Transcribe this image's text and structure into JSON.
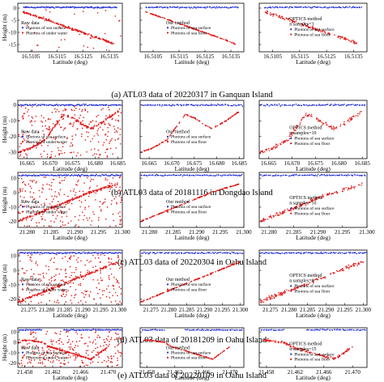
{
  "colors": {
    "surface": "#1f2bd6",
    "water": "#e01818",
    "axis": "#000000"
  },
  "rows": [
    {
      "caption": "(a) ATL03 data of 20220317 in Ganquan Island",
      "xlabel": "Latitude (deg)",
      "ylabel": "Height (m)",
      "xticks": [
        16.5105,
        16.5115,
        16.5125,
        16.5135
      ],
      "xtick_labels": [
        "16.5105",
        "16.5115",
        "16.5125",
        "16.5135"
      ],
      "yticks": [
        -15,
        -10,
        -5,
        0
      ],
      "yticks_drawn_labels": [
        "-15",
        "-10",
        "-5",
        "0"
      ]
    },
    {
      "caption": "(b) ATL03 data of 20181116 in Dongdao Island",
      "xlabel": "Latitude (deg)",
      "ylabel": "Height (m)",
      "xticks": [
        16.665,
        16.67,
        16.675,
        16.68,
        16.685
      ],
      "xtick_labels": [
        "16.665",
        "16.670",
        "16.675",
        "16.680",
        "16.685"
      ],
      "yticks": [
        -30,
        -20,
        -10,
        0
      ],
      "yticks_drawn_labels": [
        "-30",
        "-20",
        "-10",
        "0"
      ]
    },
    {
      "caption": "(c) ATL03 data of 20220304 in Oahu Island",
      "xlabel": "Latitude (deg)",
      "ylabel": "Height (m)",
      "xticks": [
        21.28,
        21.285,
        21.29,
        21.295,
        21.3
      ],
      "xtick_labels": [
        "21.280",
        "21.285",
        "21.290",
        "21.295",
        "21.300"
      ],
      "yticks": [
        -20,
        -10,
        0,
        10
      ],
      "yticks_drawn_labels": [
        "-20",
        "-10",
        "0",
        "10"
      ]
    },
    {
      "caption": "(d) ATL03 data of 20181209 in Oahu Island",
      "xlabel": "Latitude (deg)",
      "ylabel": "Height (m)",
      "xticks": [
        21.275,
        21.28,
        21.285,
        21.29,
        21.295,
        21.3
      ],
      "xtick_labels": [
        "21.275",
        "21.280",
        "21.285",
        "21.290",
        "21.295",
        "21.300"
      ],
      "yticks": [
        -20,
        -10,
        0,
        10
      ],
      "yticks_drawn_labels": [
        "-20",
        "-10",
        "0",
        "10"
      ]
    },
    {
      "caption": "(e) ATL03 data of 20220109 in Oahu Island",
      "xlabel": "Latitude (deg)",
      "ylabel": "Height (m)",
      "xticks": [
        21.458,
        21.462,
        21.466,
        21.47
      ],
      "xtick_labels": [
        "21.458",
        "21.462",
        "21.466",
        "21.470"
      ],
      "yticks": [
        -20,
        -10,
        0,
        10
      ],
      "yticks_drawn_labels": [
        "-20",
        "-10",
        "0",
        "10"
      ]
    }
  ],
  "panel_labels": {
    "raw": {
      "title": "Raw data",
      "surface": "Photons of sea surface",
      "water": "Photons of under water"
    },
    "ours": {
      "title": "Our method",
      "surface": "Photons of sea surface",
      "water": "Photons of sea floor"
    },
    "optics": {
      "title": "OPTICS method",
      "surface": "Photons of sea surface",
      "water": "Photons of sea floor"
    }
  },
  "optics_params": [
    "n samples=3",
    "n samples=10",
    "n samples=10",
    "n samples=8",
    "n samples=15"
  ],
  "chart_data": [
    {
      "type": "scatter",
      "row": "a",
      "xlim": [
        16.51,
        16.514
      ],
      "ylim": [
        -18,
        2
      ],
      "series": [
        {
          "name": "Photons of sea surface",
          "surface_height": 0.3,
          "x": [
            16.5102,
            16.5106,
            16.511,
            16.5114,
            16.5118,
            16.5122,
            16.5126,
            16.513,
            16.5134,
            16.5138
          ]
        },
        {
          "name": "Photons of sea floor",
          "x": [
            16.5102,
            16.5106,
            16.511,
            16.5114,
            16.5118,
            16.5122,
            16.5126,
            16.513,
            16.5134,
            16.5137
          ],
          "y": [
            -1.5,
            -3,
            -4.5,
            -6,
            -7.5,
            -9,
            -10.5,
            -12,
            -13.5,
            -15
          ]
        }
      ]
    },
    {
      "type": "scatter",
      "row": "b",
      "xlim": [
        16.663,
        16.686
      ],
      "ylim": [
        -34,
        3
      ],
      "series": [
        {
          "name": "Photons of sea surface",
          "surface_height": 0,
          "x": [
            16.663,
            16.668,
            16.673,
            16.678,
            16.683,
            16.686
          ]
        },
        {
          "name": "Photons of sea floor",
          "x": [
            16.663,
            16.666,
            16.669,
            16.671,
            16.673,
            16.675,
            16.677,
            16.679,
            16.682,
            16.685
          ],
          "y": [
            -30,
            -27,
            -22,
            -14,
            -6,
            -8,
            -12,
            -15,
            -10,
            -4
          ]
        }
      ]
    },
    {
      "type": "scatter",
      "row": "c",
      "xlim": [
        21.278,
        21.3
      ],
      "ylim": [
        -24,
        14
      ],
      "series": [
        {
          "name": "Photons of sea surface",
          "surface_height": 12,
          "x": [
            21.278,
            21.283,
            21.288,
            21.293,
            21.298,
            21.3
          ]
        },
        {
          "name": "Photons of sea floor",
          "x": [
            21.278,
            21.281,
            21.284,
            21.287,
            21.29,
            21.293,
            21.296,
            21.299
          ],
          "y": [
            -20,
            -16,
            -12,
            -8,
            -4,
            0,
            3,
            6
          ]
        }
      ]
    },
    {
      "type": "scatter",
      "row": "d",
      "xlim": [
        21.272,
        21.301
      ],
      "ylim": [
        -24,
        14
      ],
      "series": [
        {
          "name": "Photons of sea surface",
          "surface_height": 12,
          "x": [
            21.272,
            21.28,
            21.288,
            21.296,
            21.301
          ]
        },
        {
          "name": "Photons of sea floor",
          "x": [
            21.272,
            21.276,
            21.28,
            21.284,
            21.288,
            21.292,
            21.296,
            21.3
          ],
          "y": [
            -22,
            -18,
            -14,
            -10,
            -6,
            -2,
            2,
            6
          ]
        }
      ]
    },
    {
      "type": "scatter",
      "row": "e",
      "xlim": [
        21.457,
        21.472
      ],
      "ylim": [
        -24,
        14
      ],
      "series": [
        {
          "name": "Photons of sea surface",
          "surface_height": 12,
          "x": [
            21.457,
            21.459,
            21.463,
            21.466,
            21.469,
            21.472
          ]
        },
        {
          "name": "Photons of sea floor",
          "x": [
            21.4575,
            21.4585,
            21.4595,
            21.4605,
            21.4615,
            21.4625,
            21.4635,
            21.4645,
            21.4655,
            21.4665,
            21.4675,
            21.47
          ],
          "y": [
            2,
            2,
            1,
            0,
            -4,
            -6,
            -8,
            -10,
            -12,
            -14,
            -16,
            -4
          ]
        }
      ]
    }
  ]
}
